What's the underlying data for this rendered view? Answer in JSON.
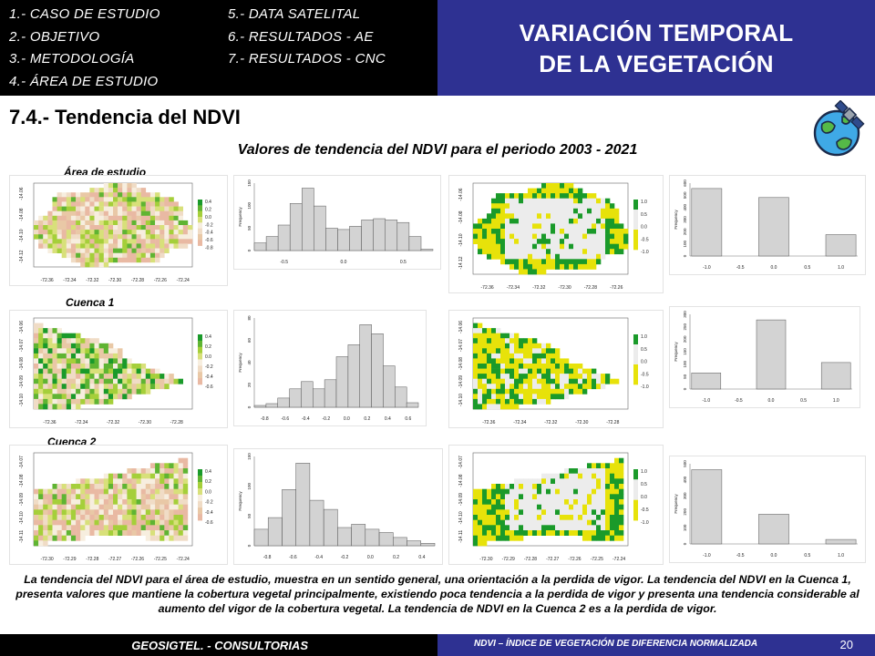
{
  "header": {
    "toc_left": [
      "1.- CASO DE ESTUDIO",
      "2.- OBJETIVO",
      "3.- METODOLOGÍA",
      "4.- ÁREA DE ESTUDIO"
    ],
    "toc_right": [
      "5.- DATA SATELITAL",
      "6.- RESULTADOS - AE",
      "7.- RESULTADOS - CNC"
    ],
    "title_line1": "VARIACIÓN TEMPORAL",
    "title_line2": "DE LA VEGETACIÓN"
  },
  "section_title": "7.4.- Tendencia del NDVI",
  "subtitle": "Valores de tendencia del NDVI para el periodo 2003 - 2021",
  "rows": [
    {
      "label": "Área de estudio",
      "map_x_ticks": [
        "-72.36",
        "-72.34",
        "-72.32",
        "-72.30",
        "-72.28",
        "-72.26",
        "-72.24"
      ],
      "map_y_ticks": [
        "-14.06",
        "-14.08",
        "-14.10",
        "-14.12"
      ],
      "map_legend": [
        "0.4",
        "0.2",
        "0.0",
        "-0.2",
        "-0.4",
        "-0.6",
        "-0.8"
      ],
      "hist_x_ticks": [
        "-0.5",
        "0.0",
        "0.5"
      ],
      "hist_y_ticks": [
        "0",
        "50",
        "100",
        "150"
      ],
      "hist_values": [
        12,
        22,
        40,
        74,
        98,
        70,
        35,
        33,
        38,
        48,
        50,
        48,
        44,
        22,
        2
      ],
      "class_x_ticks": [
        "-72.36",
        "-72.34",
        "-72.32",
        "-72.30",
        "-72.28",
        "-72.26"
      ],
      "class_y_ticks": [
        "-14.06",
        "-14.08",
        "-14.10",
        "-14.12"
      ],
      "class_legend": [
        "1.0",
        "0.5",
        "0.0",
        "-0.5",
        "-1.0"
      ],
      "bar_x_ticks": [
        "-1.0",
        "-0.5",
        "0.0",
        "0.5",
        "1.0"
      ],
      "bar_y_ticks": [
        "0",
        "100",
        "200",
        "300",
        "400",
        "500",
        "600"
      ],
      "bar_values": [
        600,
        0,
        520,
        0,
        190
      ]
    },
    {
      "label": "Cuenca 1",
      "map_x_ticks": [
        "-72.36",
        "-72.34",
        "-72.32",
        "-72.30",
        "-72.28"
      ],
      "map_y_ticks": [
        "-14.06",
        "-14.07",
        "-14.08",
        "-14.09",
        "-14.10"
      ],
      "map_legend": [
        "0.4",
        "0.2",
        "0.0",
        "-0.2",
        "-0.4",
        "-0.6"
      ],
      "hist_x_ticks": [
        "-0.8",
        "-0.6",
        "-0.4",
        "-0.2",
        "0.0",
        "0.2",
        "0.4",
        "0.6"
      ],
      "hist_y_ticks": [
        "0",
        "20",
        "40",
        "60",
        "80"
      ],
      "hist_values": [
        2,
        4,
        10,
        20,
        28,
        20,
        30,
        55,
        68,
        90,
        80,
        45,
        22,
        5
      ],
      "class_x_ticks": [
        "-72.36",
        "-72.34",
        "-72.32",
        "-72.30",
        "-72.28"
      ],
      "class_y_ticks": [
        "-14.06",
        "-14.07",
        "-14.08",
        "-14.09",
        "-14.10"
      ],
      "class_legend": [
        "1.0",
        "0.5",
        "0.0",
        "-0.5",
        "-1.0"
      ],
      "bar_x_ticks": [
        "-1.0",
        "-0.5",
        "0.0",
        "0.5",
        "1.0"
      ],
      "bar_y_ticks": [
        "0",
        "50",
        "100",
        "150",
        "200",
        "250",
        "300"
      ],
      "bar_values": [
        70,
        0,
        300,
        0,
        115
      ]
    },
    {
      "label": "Cuenca 2",
      "map_x_ticks": [
        "-72.30",
        "-72.29",
        "-72.28",
        "-72.27",
        "-72.26",
        "-72.25",
        "-72.24"
      ],
      "map_y_ticks": [
        "-14.07",
        "-14.08",
        "-14.09",
        "-14.10",
        "-14.11"
      ],
      "map_legend": [
        "0.4",
        "0.2",
        "0.0",
        "-0.2",
        "-0.4",
        "-0.6"
      ],
      "hist_x_ticks": [
        "-0.8",
        "-0.6",
        "-0.4",
        "-0.2",
        "0.0",
        "0.2",
        "0.4"
      ],
      "hist_y_ticks": [
        "0",
        "50",
        "100",
        "150"
      ],
      "hist_values": [
        20,
        34,
        68,
        100,
        55,
        44,
        22,
        26,
        20,
        16,
        10,
        6,
        3
      ],
      "class_x_ticks": [
        "-72.30",
        "-72.29",
        "-72.28",
        "-72.27",
        "-72.26",
        "-72.25",
        "-72.24"
      ],
      "class_y_ticks": [
        "-14.07",
        "-14.08",
        "-14.09",
        "-14.10",
        "-14.11"
      ],
      "class_legend": [
        "1.0",
        "0.5",
        "0.0",
        "-0.5",
        "-1.0"
      ],
      "bar_x_ticks": [
        "-1.0",
        "-0.5",
        "0.0",
        "0.5",
        "1.0"
      ],
      "bar_y_ticks": [
        "0",
        "100",
        "200",
        "300",
        "400",
        "500"
      ],
      "bar_values": [
        500,
        0,
        200,
        0,
        30
      ]
    }
  ],
  "axis_frequency": "Frequency",
  "caption": "La tendencia del NDVI para el área de estudio, muestra en un sentido general, una orientación a la perdida de vigor. La tendencia del NDVI en la Cuenca 1, presenta valores que mantiene la cobertura vegetal principalmente, existiendo poca tendencia a la perdida de vigor y presenta una tendencia considerable al aumento del vigor de la cobertura vegetal. La tendencia de NDVI en la Cuenca 2 es a la perdida de vigor.",
  "footer": {
    "left": "GEOSIGTEL. - CONSULTORIAS",
    "right": "NDVI – ÍNDICE DE VEGETACIÓN DE DIFERENCIA NORMALIZADA",
    "page": "20"
  },
  "colors": {
    "header_blue": "#2e3192",
    "ndvi_green": "#1a9a2a",
    "ndvi_yellow": "#e7e20a",
    "ndvi_grey": "#ececec",
    "ndvi_pink": "#e9b9a3"
  }
}
